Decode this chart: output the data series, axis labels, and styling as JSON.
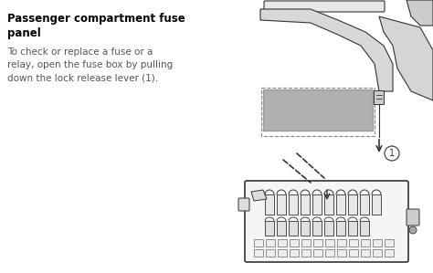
{
  "bg_color": "#ffffff",
  "title": "Passenger compartment fuse\npanel",
  "body_text": "To check or replace a fuse or a\nrelay, open the fuse box by pulling\ndown the lock release lever (1).",
  "title_color": "#000000",
  "body_color": "#555555",
  "diagram_line_color": "#333333",
  "gray_box_color": "#b0b0b0",
  "gray_box_edge": "#999999",
  "dashed_box_color": "#aaaaaa",
  "fuse_color": "#444444",
  "fuse_fill": "#dddddd"
}
